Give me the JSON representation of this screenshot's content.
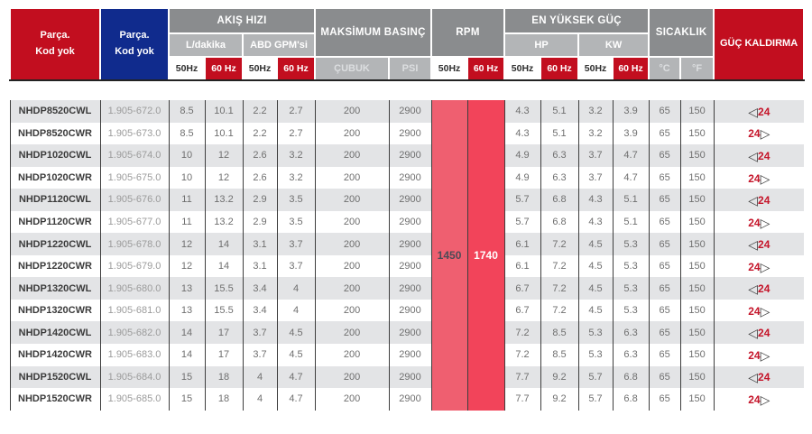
{
  "table": {
    "header": {
      "model_col_line1": "Parça.",
      "model_col_line2": "Kod yok",
      "part_col_line1": "Parça.",
      "part_col_line2": "Kod yok",
      "flow_group": "AKIŞ HIZI",
      "flow_sub_l": "L/dakika",
      "flow_sub_gpm": "ABD GPM'si",
      "pressure_group": "MAKSİMUM BASINÇ",
      "pressure_sub_bar": "ÇUBUK",
      "pressure_sub_psi": "PSI",
      "rpm_group": "RPM",
      "power_group": "EN YÜKSEK GÜÇ",
      "power_sub_hp": "HP",
      "power_sub_kw": "KW",
      "temp_group": "SICAKLIK",
      "temp_sub_c": "°C",
      "temp_sub_f": "°F",
      "lift_group": "GÜÇ KALDIRMA",
      "hz50": "50Hz",
      "hz60": "60 Hz"
    },
    "rpm_merged": {
      "hz50": "1450",
      "hz60": "1740"
    },
    "lift_value": "24",
    "rows": [
      {
        "model": "NHDP8520CWL",
        "part_code": "1.905-672.0",
        "flow_l_50hz": "8.5",
        "flow_l_60hz": "10.1",
        "flow_gpm_50hz": "2.2",
        "flow_gpm_60hz": "2.7",
        "pressure_bar": "200",
        "pressure_psi": "2900",
        "hp_50hz": "4.3",
        "hp_60hz": "5.1",
        "kw_50hz": "3.2",
        "kw_60hz": "3.9",
        "temp_c": "65",
        "temp_f": "150",
        "lift_direction": "left"
      },
      {
        "model": "NHDP8520CWR",
        "part_code": "1.905-673.0",
        "flow_l_50hz": "8.5",
        "flow_l_60hz": "10.1",
        "flow_gpm_50hz": "2.2",
        "flow_gpm_60hz": "2.7",
        "pressure_bar": "200",
        "pressure_psi": "2900",
        "hp_50hz": "4.3",
        "hp_60hz": "5.1",
        "kw_50hz": "3.2",
        "kw_60hz": "3.9",
        "temp_c": "65",
        "temp_f": "150",
        "lift_direction": "right"
      },
      {
        "model": "NHDP1020CWL",
        "part_code": "1.905-674.0",
        "flow_l_50hz": "10",
        "flow_l_60hz": "12",
        "flow_gpm_50hz": "2.6",
        "flow_gpm_60hz": "3.2",
        "pressure_bar": "200",
        "pressure_psi": "2900",
        "hp_50hz": "4.9",
        "hp_60hz": "6.3",
        "kw_50hz": "3.7",
        "kw_60hz": "4.7",
        "temp_c": "65",
        "temp_f": "150",
        "lift_direction": "left"
      },
      {
        "model": "NHDP1020CWR",
        "part_code": "1.905-675.0",
        "flow_l_50hz": "10",
        "flow_l_60hz": "12",
        "flow_gpm_50hz": "2.6",
        "flow_gpm_60hz": "3.2",
        "pressure_bar": "200",
        "pressure_psi": "2900",
        "hp_50hz": "4.9",
        "hp_60hz": "6.3",
        "kw_50hz": "3.7",
        "kw_60hz": "4.7",
        "temp_c": "65",
        "temp_f": "150",
        "lift_direction": "right"
      },
      {
        "model": "NHDP1120CWL",
        "part_code": "1.905-676.0",
        "flow_l_50hz": "11",
        "flow_l_60hz": "13.2",
        "flow_gpm_50hz": "2.9",
        "flow_gpm_60hz": "3.5",
        "pressure_bar": "200",
        "pressure_psi": "2900",
        "hp_50hz": "5.7",
        "hp_60hz": "6.8",
        "kw_50hz": "4.3",
        "kw_60hz": "5.1",
        "temp_c": "65",
        "temp_f": "150",
        "lift_direction": "left"
      },
      {
        "model": "NHDP1120CWR",
        "part_code": "1.905-677.0",
        "flow_l_50hz": "11",
        "flow_l_60hz": "13.2",
        "flow_gpm_50hz": "2.9",
        "flow_gpm_60hz": "3.5",
        "pressure_bar": "200",
        "pressure_psi": "2900",
        "hp_50hz": "5.7",
        "hp_60hz": "6.8",
        "kw_50hz": "4.3",
        "kw_60hz": "5.1",
        "temp_c": "65",
        "temp_f": "150",
        "lift_direction": "right"
      },
      {
        "model": "NHDP1220CWL",
        "part_code": "1.905-678.0",
        "flow_l_50hz": "12",
        "flow_l_60hz": "14",
        "flow_gpm_50hz": "3.1",
        "flow_gpm_60hz": "3.7",
        "pressure_bar": "200",
        "pressure_psi": "2900",
        "hp_50hz": "6.1",
        "hp_60hz": "7.2",
        "kw_50hz": "4.5",
        "kw_60hz": "5.3",
        "temp_c": "65",
        "temp_f": "150",
        "lift_direction": "left"
      },
      {
        "model": "NHDP1220CWR",
        "part_code": "1.905-679.0",
        "flow_l_50hz": "12",
        "flow_l_60hz": "14",
        "flow_gpm_50hz": "3.1",
        "flow_gpm_60hz": "3.7",
        "pressure_bar": "200",
        "pressure_psi": "2900",
        "hp_50hz": "6.1",
        "hp_60hz": "7.2",
        "kw_50hz": "4.5",
        "kw_60hz": "5.3",
        "temp_c": "65",
        "temp_f": "150",
        "lift_direction": "right"
      },
      {
        "model": "NHDP1320CWL",
        "part_code": "1.905-680.0",
        "flow_l_50hz": "13",
        "flow_l_60hz": "15.5",
        "flow_gpm_50hz": "3.4",
        "flow_gpm_60hz": "4",
        "pressure_bar": "200",
        "pressure_psi": "2900",
        "hp_50hz": "6.7",
        "hp_60hz": "7.2",
        "kw_50hz": "4.5",
        "kw_60hz": "5.3",
        "temp_c": "65",
        "temp_f": "150",
        "lift_direction": "left"
      },
      {
        "model": "NHDP1320CWR",
        "part_code": "1.905-681.0",
        "flow_l_50hz": "13",
        "flow_l_60hz": "15.5",
        "flow_gpm_50hz": "3.4",
        "flow_gpm_60hz": "4",
        "pressure_bar": "200",
        "pressure_psi": "2900",
        "hp_50hz": "6.7",
        "hp_60hz": "7.2",
        "kw_50hz": "4.5",
        "kw_60hz": "5.3",
        "temp_c": "65",
        "temp_f": "150",
        "lift_direction": "right"
      },
      {
        "model": "NHDP1420CWL",
        "part_code": "1.905-682.0",
        "flow_l_50hz": "14",
        "flow_l_60hz": "17",
        "flow_gpm_50hz": "3.7",
        "flow_gpm_60hz": "4.5",
        "pressure_bar": "200",
        "pressure_psi": "2900",
        "hp_50hz": "7.2",
        "hp_60hz": "8.5",
        "kw_50hz": "5.3",
        "kw_60hz": "6.3",
        "temp_c": "65",
        "temp_f": "150",
        "lift_direction": "left"
      },
      {
        "model": "NHDP1420CWR",
        "part_code": "1.905-683.0",
        "flow_l_50hz": "14",
        "flow_l_60hz": "17",
        "flow_gpm_50hz": "3.7",
        "flow_gpm_60hz": "4.5",
        "pressure_bar": "200",
        "pressure_psi": "2900",
        "hp_50hz": "7.2",
        "hp_60hz": "8.5",
        "kw_50hz": "5.3",
        "kw_60hz": "6.3",
        "temp_c": "65",
        "temp_f": "150",
        "lift_direction": "right"
      },
      {
        "model": "NHDP1520CWL",
        "part_code": "1.905-684.0",
        "flow_l_50hz": "15",
        "flow_l_60hz": "18",
        "flow_gpm_50hz": "4",
        "flow_gpm_60hz": "4.7",
        "pressure_bar": "200",
        "pressure_psi": "2900",
        "hp_50hz": "7.7",
        "hp_60hz": "9.2",
        "kw_50hz": "5.7",
        "kw_60hz": "6.8",
        "temp_c": "65",
        "temp_f": "150",
        "lift_direction": "left"
      },
      {
        "model": "NHDP1520CWR",
        "part_code": "1.905-685.0",
        "flow_l_50hz": "15",
        "flow_l_60hz": "18",
        "flow_gpm_50hz": "4",
        "flow_gpm_60hz": "4.7",
        "pressure_bar": "200",
        "pressure_psi": "2900",
        "hp_50hz": "7.7",
        "hp_60hz": "9.2",
        "kw_50hz": "5.7",
        "kw_60hz": "6.8",
        "temp_c": "65",
        "temp_f": "150",
        "lift_direction": "right"
      }
    ]
  },
  "icons": {
    "left_triangle": "triangle-left-icon",
    "right_triangle": "triangle-right-icon"
  },
  "colors": {
    "brand_red": "#c20e1f",
    "brand_navy": "#102b8d",
    "header_dark_gray": "#8a8c8e",
    "header_light_gray": "#b3b5b7",
    "row_alt_gray": "#e3e4e6",
    "rpm50_pink": "#ef5f70",
    "rpm60_red": "#f2445a",
    "lift_red": "#c5152a"
  }
}
